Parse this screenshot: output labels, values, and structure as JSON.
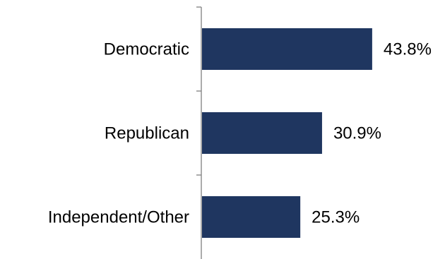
{
  "chart_data": {
    "type": "bar",
    "orientation": "horizontal",
    "categories": [
      "Democratic",
      "Republican",
      "Independent/Other"
    ],
    "values": [
      43.8,
      30.9,
      25.3
    ],
    "data_labels": [
      "43.8%",
      "30.9%",
      "25.3%"
    ],
    "title": "",
    "xlabel": "",
    "ylabel": "",
    "xlim": [
      0,
      100
    ],
    "grid": false,
    "legend": "none",
    "colors": {
      "bar": "#1f3660",
      "axis": "#808080",
      "text": "#000000"
    }
  }
}
